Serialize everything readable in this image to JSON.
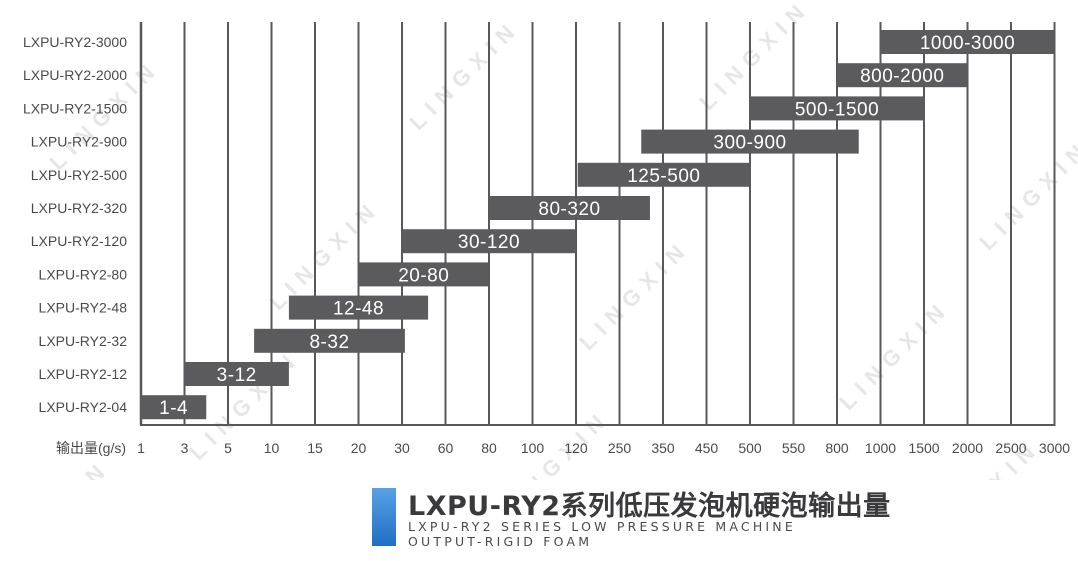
{
  "chart_data": {
    "type": "bar",
    "subtype": "range",
    "orientation": "horizontal",
    "xlabel": "输出量(g/s)",
    "x_ticks": [
      "1",
      "3",
      "5",
      "10",
      "15",
      "20",
      "30",
      "60",
      "80",
      "100",
      "120",
      "250",
      "350",
      "450",
      "500",
      "550",
      "800",
      "1000",
      "1500",
      "2000",
      "2500",
      "3000"
    ],
    "x_scale": "categorical ordinal (equal spacing per tick)",
    "categories": [
      "LXPU-RY2-04",
      "LXPU-RY2-12",
      "LXPU-RY2-32",
      "LXPU-RY2-48",
      "LXPU-RY2-80",
      "LXPU-RY2-120",
      "LXPU-RY2-320",
      "LXPU-RY2-500",
      "LXPU-RY2-900",
      "LXPU-RY2-1500",
      "LXPU-RY2-2000",
      "LXPU-RY2-3000"
    ],
    "ranges": [
      {
        "min": 1,
        "max": 4,
        "label": "1-4"
      },
      {
        "min": 3,
        "max": 12,
        "label": "3-12"
      },
      {
        "min": 8,
        "max": 32,
        "label": "8-32"
      },
      {
        "min": 12,
        "max": 48,
        "label": "12-48"
      },
      {
        "min": 20,
        "max": 80,
        "label": "20-80"
      },
      {
        "min": 30,
        "max": 120,
        "label": "30-120"
      },
      {
        "min": 80,
        "max": 320,
        "label": "80-320"
      },
      {
        "min": 125,
        "max": 500,
        "label": "125-500"
      },
      {
        "min": 300,
        "max": 900,
        "label": "300-900"
      },
      {
        "min": 500,
        "max": 1500,
        "label": "500-1500"
      },
      {
        "min": 800,
        "max": 2000,
        "label": "800-2000"
      },
      {
        "min": 1000,
        "max": 3000,
        "label": "1000-3000"
      }
    ],
    "grid": true,
    "colors": {
      "bar": "#5b5b5e",
      "bar_label": "#ffffff",
      "grid": "#58585a",
      "text": "#4a4a4c"
    }
  },
  "title": {
    "main": "LXPU-RY2系列低压发泡机硬泡输出量",
    "sub_line1": "LXPU-RY2 SERIES LOW PRESSURE MACHINE",
    "sub_line2": "OUTPUT-RIGID FOAM",
    "accent_color": "#2f7fd0"
  },
  "watermark": {
    "text": "LINGXIN"
  }
}
